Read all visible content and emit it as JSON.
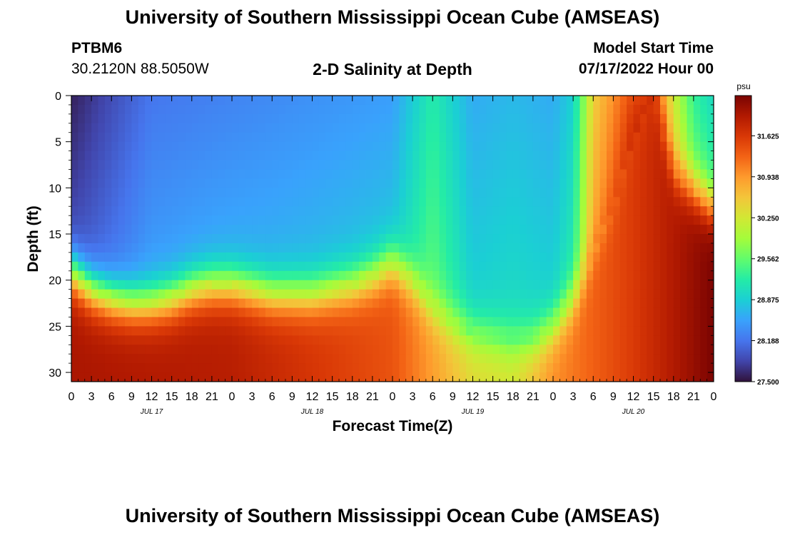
{
  "header": {
    "title": "University of Southern Mississippi Ocean Cube (AMSEAS)",
    "station_id": "PTBM6",
    "station_coords": "30.2120N  88.5050W",
    "plot_title": "2-D Salinity at Depth",
    "model_start_label": "Model Start Time",
    "model_start_value": "07/17/2022 Hour 00"
  },
  "footer": {
    "title": "University of Southern Mississippi Ocean Cube (AMSEAS)"
  },
  "chart_data": {
    "type": "heatmap",
    "variable": "Salinity",
    "xlabel": "Forecast Time(Z)",
    "ylabel": "Depth (ft)",
    "xlim": [
      0,
      96
    ],
    "ylim": [
      0,
      31
    ],
    "y_inverted": true,
    "x_ticks": [
      0,
      3,
      6,
      9,
      12,
      15,
      18,
      21,
      24,
      27,
      30,
      33,
      36,
      39,
      42,
      45,
      48,
      51,
      54,
      57,
      60,
      63,
      66,
      69,
      72,
      75,
      78,
      81,
      84,
      87,
      90,
      93,
      96
    ],
    "x_tick_labels": [
      "0",
      "3",
      "6",
      "9",
      "12",
      "15",
      "18",
      "21",
      "0",
      "3",
      "6",
      "9",
      "12",
      "15",
      "18",
      "21",
      "0",
      "3",
      "6",
      "9",
      "12",
      "15",
      "18",
      "21",
      "0",
      "3",
      "6",
      "9",
      "12",
      "15",
      "18",
      "21",
      "0"
    ],
    "day_labels": [
      {
        "x": 12,
        "label": "JUL 17"
      },
      {
        "x": 36,
        "label": "JUL 18"
      },
      {
        "x": 60,
        "label": "JUL 19"
      },
      {
        "x": 84,
        "label": "JUL 20"
      }
    ],
    "y_ticks": [
      0,
      5,
      10,
      15,
      20,
      25,
      30
    ],
    "y_tick_labels": [
      "0",
      "5",
      "10",
      "15",
      "20",
      "25",
      "30"
    ],
    "colorbar": {
      "unit": "psu",
      "min": 27.5,
      "max": 32.3,
      "ticks": [
        27.5,
        28.188,
        28.875,
        29.562,
        30.25,
        30.938,
        31.625
      ],
      "tick_labels": [
        "27.500",
        "28.188",
        "28.875",
        "29.562",
        "30.250",
        "30.938",
        "31.625"
      ],
      "colormap": [
        "#30123b",
        "#4145ab",
        "#4675ed",
        "#39a2fc",
        "#1bcfd4",
        "#24eca6",
        "#61fc6c",
        "#a4fc3b",
        "#d1e834",
        "#f3c63a",
        "#fe9b2d",
        "#f36315",
        "#d93806",
        "#b11901",
        "#7a0402"
      ]
    },
    "halocline_depth_ft": [
      {
        "t": 0,
        "d": 19
      },
      {
        "t": 3,
        "d": 21
      },
      {
        "t": 6,
        "d": 22
      },
      {
        "t": 9,
        "d": 22.5
      },
      {
        "t": 12,
        "d": 22.5
      },
      {
        "t": 15,
        "d": 22
      },
      {
        "t": 18,
        "d": 21
      },
      {
        "t": 21,
        "d": 20.5
      },
      {
        "t": 24,
        "d": 20.5
      },
      {
        "t": 27,
        "d": 21
      },
      {
        "t": 30,
        "d": 21.5
      },
      {
        "t": 33,
        "d": 21.5
      },
      {
        "t": 36,
        "d": 21.5
      },
      {
        "t": 39,
        "d": 21
      },
      {
        "t": 42,
        "d": 20.5
      },
      {
        "t": 45,
        "d": 19.5
      },
      {
        "t": 48,
        "d": 18
      },
      {
        "t": 51,
        "d": 20
      },
      {
        "t": 54,
        "d": 23
      },
      {
        "t": 57,
        "d": 24.5
      },
      {
        "t": 60,
        "d": 25.5
      },
      {
        "t": 63,
        "d": 26
      },
      {
        "t": 66,
        "d": 26.5
      },
      {
        "t": 69,
        "d": 26.5
      },
      {
        "t": 72,
        "d": 25
      },
      {
        "t": 75,
        "d": 22
      },
      {
        "t": 78,
        "d": 17
      },
      {
        "t": 81,
        "d": 12
      },
      {
        "t": 84,
        "d": 5
      },
      {
        "t": 87,
        "d": 0
      },
      {
        "t": 90,
        "d": 8
      },
      {
        "t": 93,
        "d": 10
      },
      {
        "t": 96,
        "d": 12
      }
    ],
    "surface_salinity_psu": [
      {
        "t": 0,
        "v": 27.6
      },
      {
        "t": 6,
        "v": 27.9
      },
      {
        "t": 12,
        "v": 28.2
      },
      {
        "t": 24,
        "v": 28.3
      },
      {
        "t": 36,
        "v": 28.4
      },
      {
        "t": 48,
        "v": 28.5
      },
      {
        "t": 54,
        "v": 29.2
      },
      {
        "t": 60,
        "v": 28.6
      },
      {
        "t": 66,
        "v": 28.7
      },
      {
        "t": 72,
        "v": 28.6
      },
      {
        "t": 75,
        "v": 28.9
      },
      {
        "t": 78,
        "v": 30.5
      },
      {
        "t": 84,
        "v": 31.5
      },
      {
        "t": 87,
        "v": 31.5
      },
      {
        "t": 90,
        "v": 30.2
      },
      {
        "t": 93,
        "v": 29.3
      },
      {
        "t": 96,
        "v": 29.0
      }
    ],
    "bottom_salinity_psu": [
      {
        "t": 0,
        "v": 32.0
      },
      {
        "t": 24,
        "v": 31.9
      },
      {
        "t": 48,
        "v": 31.4
      },
      {
        "t": 60,
        "v": 30.4
      },
      {
        "t": 66,
        "v": 30.3
      },
      {
        "t": 72,
        "v": 31.0
      },
      {
        "t": 84,
        "v": 31.6
      },
      {
        "t": 96,
        "v": 32.3
      }
    ]
  }
}
